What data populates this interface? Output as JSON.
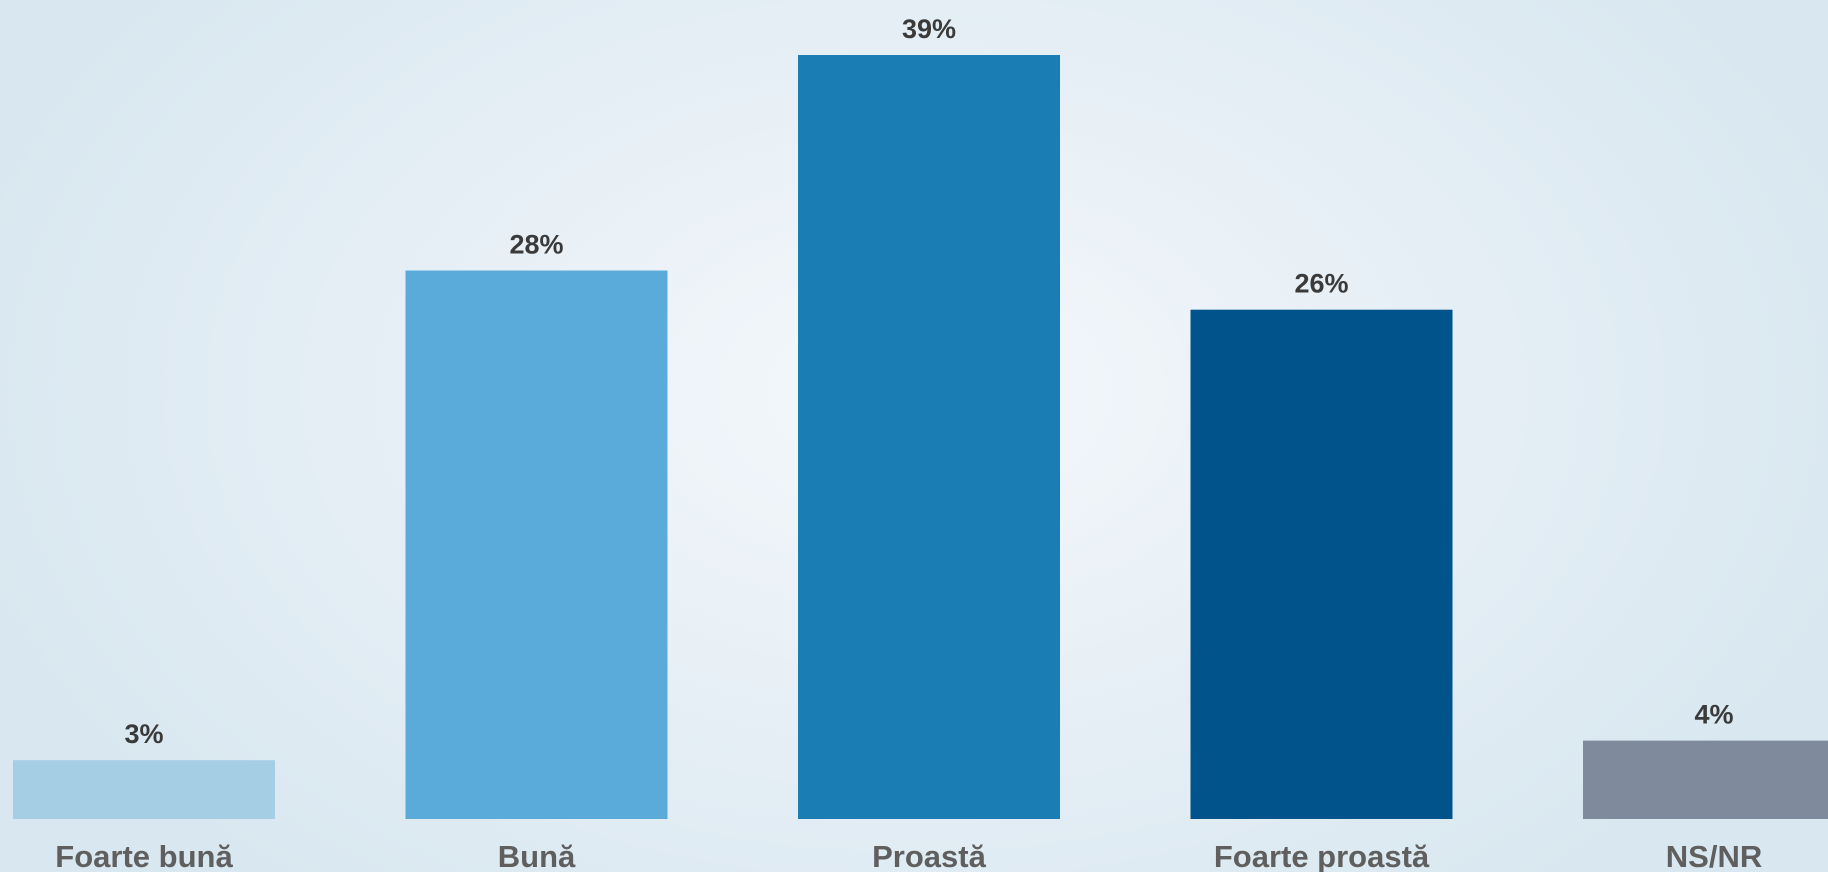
{
  "chart_data": {
    "type": "bar",
    "categories": [
      "Foarte bună",
      "Bună",
      "Proastă",
      "Foarte proastă",
      "NS/NR"
    ],
    "values": [
      3,
      28,
      39,
      26,
      4
    ],
    "value_labels": [
      "3%",
      "28%",
      "39%",
      "26%",
      "4%"
    ],
    "colors": [
      "#a5cde4",
      "#5aabda",
      "#1a7db4",
      "#00548b",
      "#7f8b9d"
    ],
    "title": "",
    "xlabel": "",
    "ylabel": "",
    "ylim": [
      0,
      39
    ],
    "grid": false,
    "legend": "none"
  }
}
